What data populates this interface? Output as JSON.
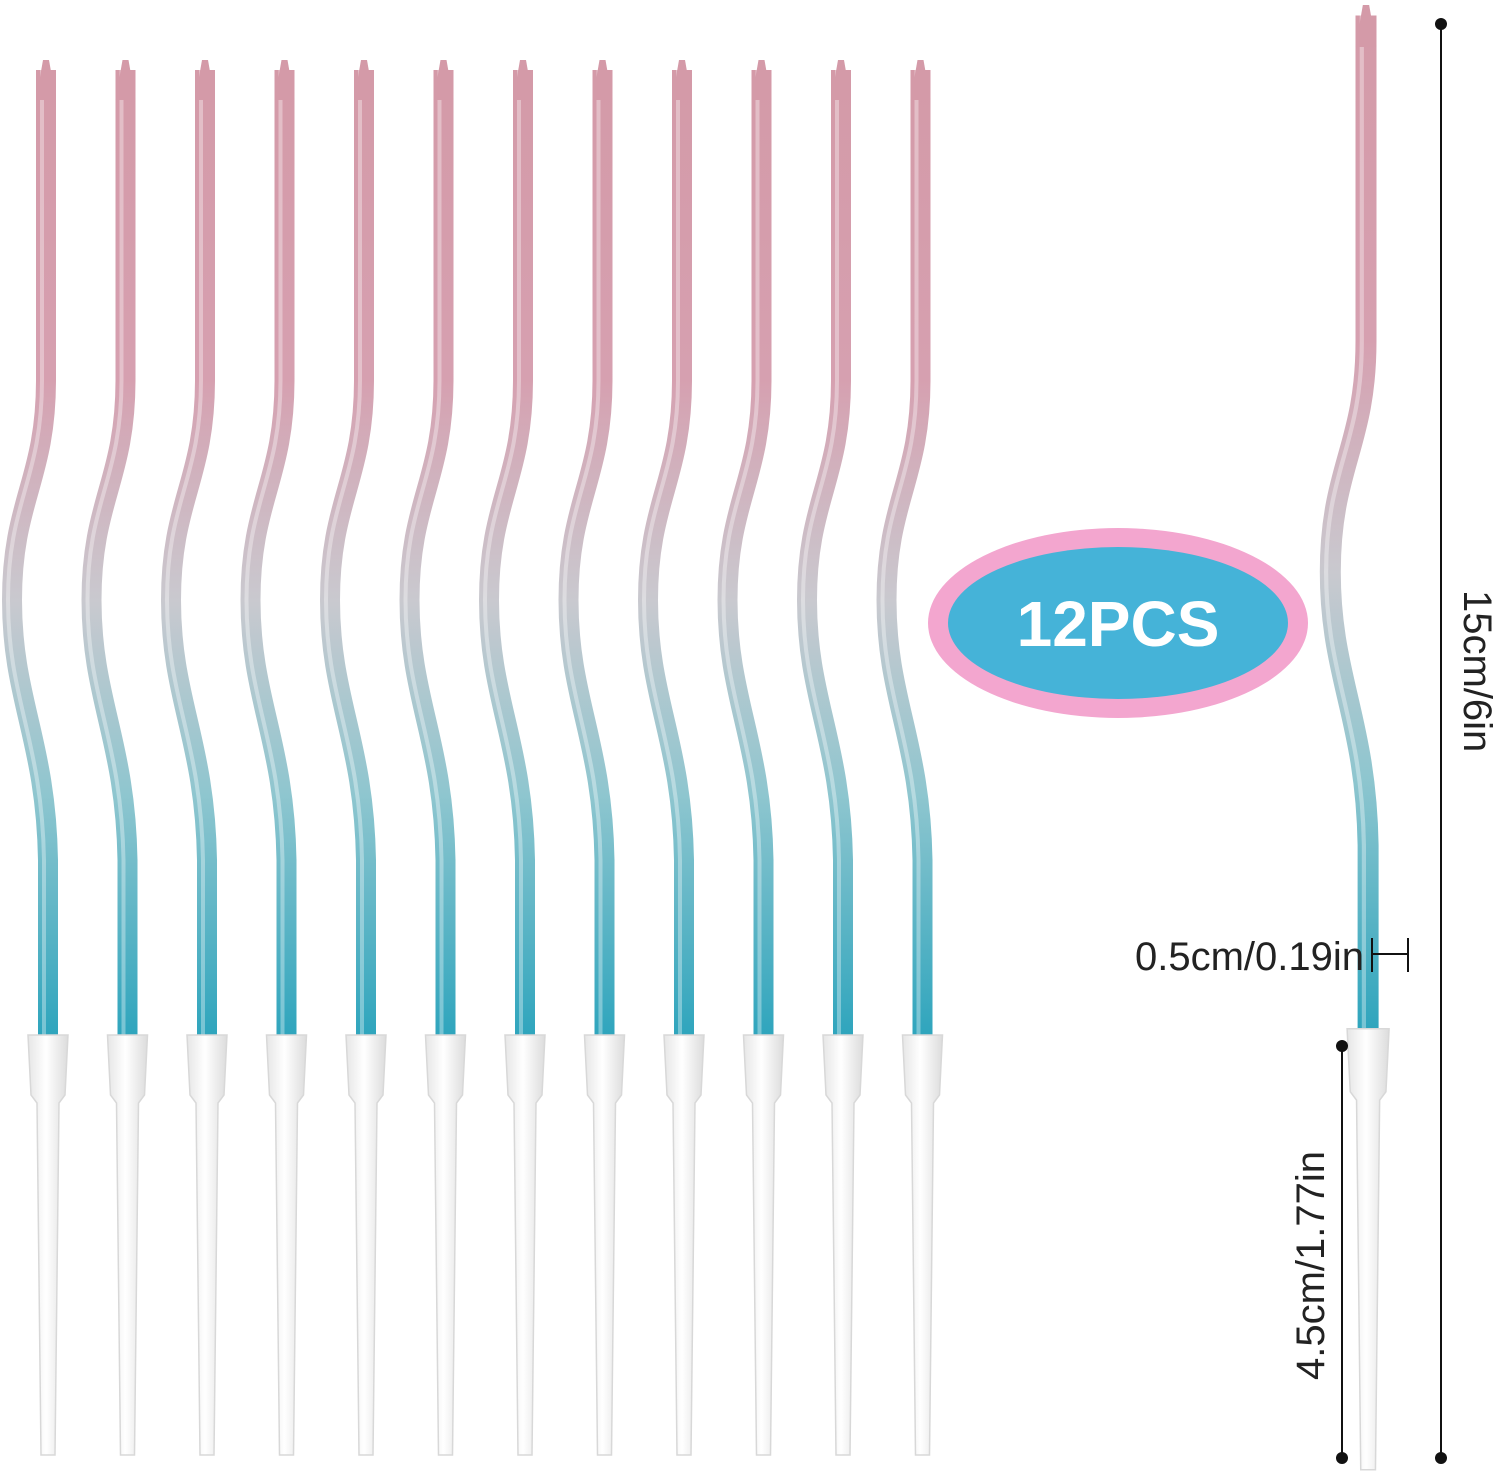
{
  "product": {
    "candle_count": 12,
    "colors": {
      "top": "#d49aa8",
      "middle": "#c9c9cf",
      "bottom": "#2fa5bd",
      "holder": "#f2f2f2",
      "holder_edge": "#d8d8d8"
    }
  },
  "badge": {
    "label": "12PCS",
    "outer_color": "#f3a6cf",
    "inner_color": "#45b3d8"
  },
  "dimensions": {
    "total_height": "15cm/6in",
    "diameter": "0.5cm/0.19in",
    "holder_length": "4.5cm/1.77in",
    "line_color": "#111111"
  }
}
